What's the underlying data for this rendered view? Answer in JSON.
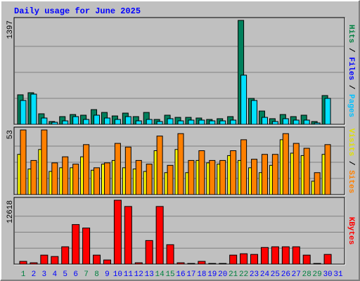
{
  "title": "Daily usage for June 2025",
  "chart_data": [
    {
      "type": "bar",
      "ylim": [
        0,
        1397
      ],
      "yticks": [
        1397
      ],
      "side_label": [
        {
          "text": "Hits",
          "color": "#008040"
        },
        {
          "text": " / ",
          "color": "#000000"
        },
        {
          "text": "Files",
          "color": "#0000ff"
        },
        {
          "text": " / ",
          "color": "#000000"
        },
        {
          "text": "Pages",
          "color": "#00c0ff"
        }
      ],
      "series": [
        {
          "name": "Hits",
          "color": "#00805c",
          "values": [
            397,
            425,
            142,
            38,
            104,
            132,
            123,
            198,
            160,
            113,
            151,
            104,
            160,
            66,
            123,
            94,
            94,
            85,
            66,
            76,
            104,
            1397,
            349,
            179,
            76,
            132,
            104,
            123,
            38,
            387,
            null
          ]
        },
        {
          "name": "Pages",
          "color": "#00e0ff",
          "values": [
            321,
            406,
            85,
            28,
            47,
            104,
            66,
            123,
            85,
            66,
            104,
            47,
            66,
            38,
            76,
            47,
            57,
            57,
            47,
            47,
            57,
            661,
            321,
            94,
            38,
            76,
            57,
            57,
            19,
            349,
            null
          ]
        }
      ]
    },
    {
      "type": "bar",
      "ylim": [
        0,
        53
      ],
      "yticks": [
        53
      ],
      "side_label": [
        {
          "text": "Visits",
          "color": "#e0e000"
        },
        {
          "text": " / ",
          "color": "#000000"
        },
        {
          "text": "Sites",
          "color": "#ff8000"
        }
      ],
      "series": [
        {
          "name": "Visits",
          "color": "#ffff00",
          "values": [
            33,
            21,
            37,
            19,
            22,
            22,
            31,
            20,
            25,
            28,
            22,
            21,
            19,
            36,
            18,
            37,
            18,
            28,
            26,
            25,
            32,
            28,
            22,
            18,
            24,
            45,
            34,
            32,
            11,
            33,
            null
          ]
        },
        {
          "name": "Sites",
          "color": "#ff8000",
          "values": [
            53,
            28,
            53,
            26,
            31,
            25,
            41,
            22,
            26,
            42,
            39,
            28,
            25,
            48,
            24,
            50,
            28,
            36,
            28,
            28,
            36,
            45,
            29,
            33,
            33,
            50,
            42,
            38,
            18,
            41,
            null
          ]
        }
      ]
    },
    {
      "type": "bar",
      "ylim": [
        0,
        12618
      ],
      "yticks": [
        12618
      ],
      "side_label": [
        {
          "text": "KBytes",
          "color": "#ff0000"
        }
      ],
      "series": [
        {
          "name": "KBytes",
          "color": "#ff0000",
          "values": [
            549,
            274,
            1783,
            1509,
            3429,
            7817,
            7132,
            1783,
            823,
            12618,
            11384,
            274,
            4663,
            11384,
            3840,
            274,
            137,
            549,
            137,
            137,
            1783,
            2057,
            1920,
            3292,
            3429,
            3429,
            3429,
            1783,
            137,
            1920,
            null
          ]
        }
      ],
      "categories": [
        "1",
        "2",
        "3",
        "4",
        "5",
        "6",
        "7",
        "8",
        "9",
        "10",
        "11",
        "12",
        "13",
        "14",
        "15",
        "16",
        "17",
        "18",
        "19",
        "20",
        "21",
        "22",
        "23",
        "24",
        "25",
        "26",
        "27",
        "28",
        "29",
        "30",
        "31"
      ],
      "category_colors": [
        "#008040",
        "#0000ff",
        "#0000ff",
        "#0000ff",
        "#0000ff",
        "#0000ff",
        "#008040",
        "#008040",
        "#0000ff",
        "#0000ff",
        "#0000ff",
        "#0000ff",
        "#0000ff",
        "#008040",
        "#008040",
        "#0000ff",
        "#0000ff",
        "#0000ff",
        "#0000ff",
        "#0000ff",
        "#008040",
        "#008040",
        "#0000ff",
        "#0000ff",
        "#0000ff",
        "#0000ff",
        "#0000ff",
        "#008040",
        "#008040",
        "#0000ff",
        "#0000ff"
      ]
    }
  ]
}
